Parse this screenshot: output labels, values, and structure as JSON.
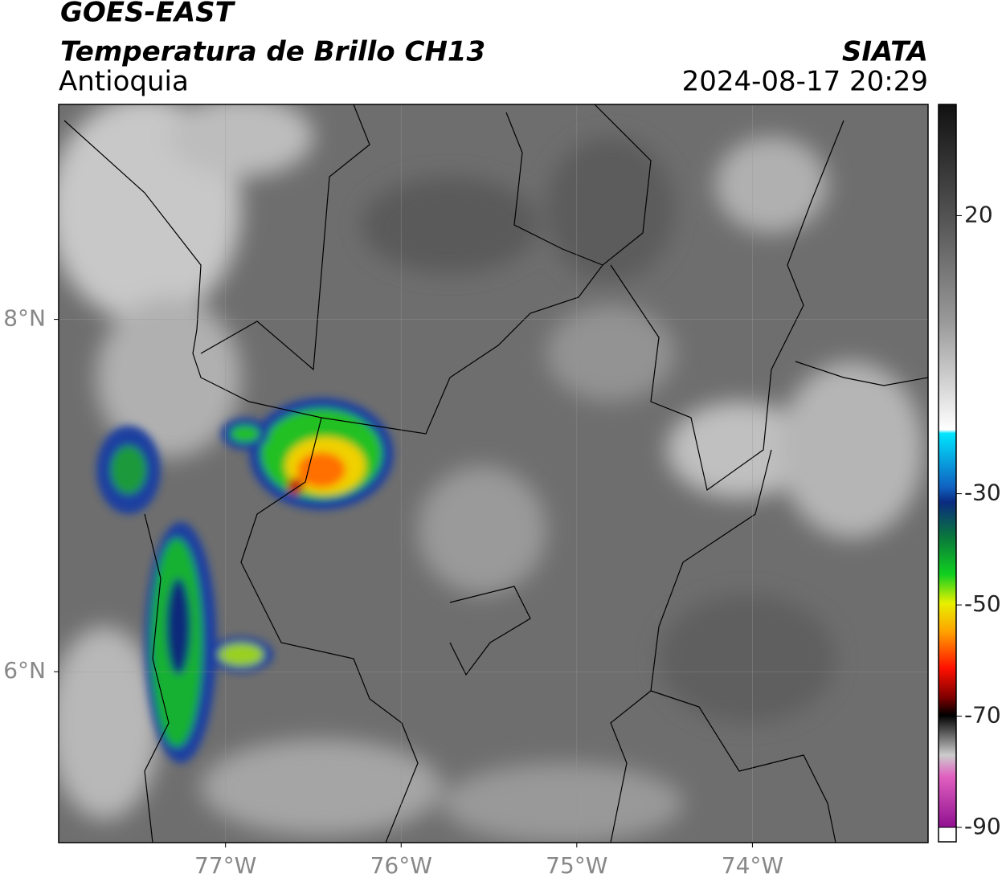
{
  "chart_data": {
    "type": "map",
    "title": "GOES-EAST",
    "subtitle": "Temperatura de Brillo CH13",
    "region": "Antioquia",
    "source": "SIATA",
    "timestamp": "2024-08-17 20:29",
    "xlim": [
      -77.95,
      -73.0
    ],
    "ylim": [
      5.03,
      9.22
    ],
    "xticks": [
      {
        "value": -77,
        "label": "77°W"
      },
      {
        "value": -76,
        "label": "76°W"
      },
      {
        "value": -75,
        "label": "75°W"
      },
      {
        "value": -74,
        "label": "74°W"
      }
    ],
    "yticks": [
      {
        "value": 8,
        "label": "8°N"
      },
      {
        "value": 6,
        "label": "6°N"
      }
    ],
    "grid": true,
    "colorbar": {
      "clim": [
        -90,
        40
      ],
      "ticks": [
        20,
        -30,
        -50,
        -70,
        -90
      ]
    }
  }
}
